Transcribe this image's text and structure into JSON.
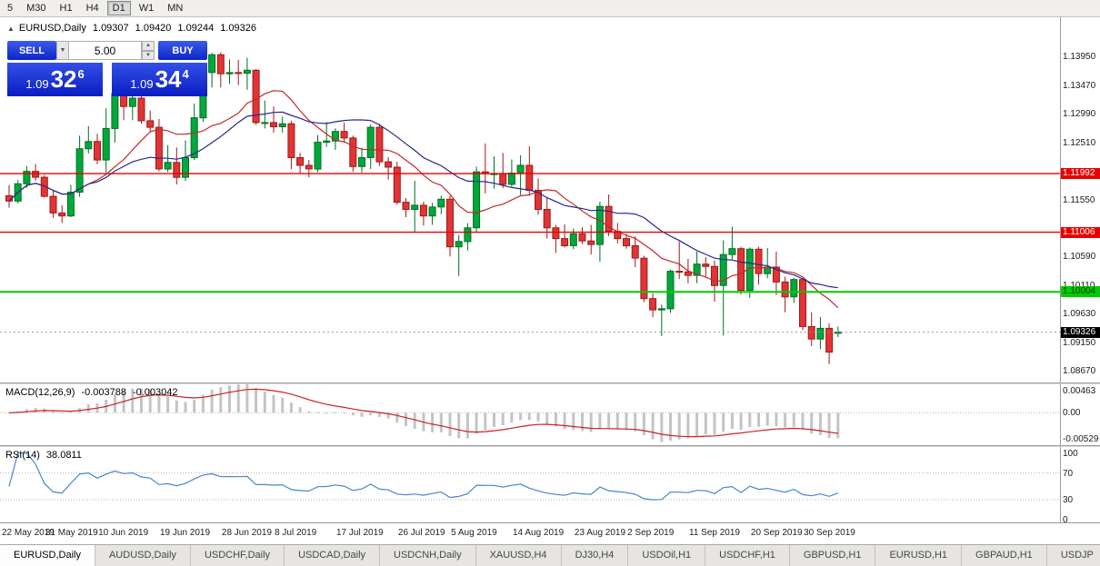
{
  "toolbar": {
    "timeframes": [
      {
        "label": "5",
        "active": false
      },
      {
        "label": "M30",
        "active": false
      },
      {
        "label": "H1",
        "active": false
      },
      {
        "label": "H4",
        "active": false
      },
      {
        "label": "D1",
        "active": true
      },
      {
        "label": "W1",
        "active": false
      },
      {
        "label": "MN",
        "active": false
      }
    ]
  },
  "chart_header": {
    "collapse_icon": "▲",
    "symbol": "EURUSD,Daily",
    "open": "1.09307",
    "high": "1.09420",
    "low": "1.09244",
    "close": "1.09326"
  },
  "one_click_trading": {
    "sell_label": "SELL",
    "buy_label": "BUY",
    "lot_value": "5.00",
    "sell_price": {
      "prefix": "1.09",
      "big": "32",
      "sup": "6"
    },
    "buy_price": {
      "prefix": "1.09",
      "big": "34",
      "sup": "4"
    },
    "icons": {
      "dropdown": "▼",
      "step_up": "▲",
      "step_down": "▼"
    }
  },
  "chart_data": {
    "type": "candlestick",
    "symbol": "EURUSD",
    "timeframe": "Daily",
    "price_range": {
      "top": 1.1462,
      "bottom": 1.0848
    },
    "price_axis_ticks": [
      "1.13950",
      "1.13470",
      "1.12990",
      "1.12510",
      "1.11550",
      "1.10590",
      "1.10110",
      "1.09630",
      "1.09150",
      "1.08670"
    ],
    "levels": [
      {
        "price": 1.11992,
        "label": "1.11992",
        "color": "#e80000",
        "text_color": "#ffffff",
        "width": 1.4,
        "type": "resistance-upper"
      },
      {
        "price": 1.11006,
        "label": "1.11006",
        "color": "#e80000",
        "text_color": "#ffffff",
        "width": 1.4,
        "type": "resistance-lower"
      },
      {
        "price": 1.10004,
        "label": "1.10004",
        "color": "#00cc00",
        "text_color": "#003300",
        "width": 2,
        "type": "support"
      }
    ],
    "current_price": {
      "value": 1.09326,
      "label": "1.09326",
      "bg": "#000000",
      "text_color": "#ffffff"
    },
    "colors": {
      "up": "#00a83a",
      "up_border": "#006e22",
      "down": "#e23434",
      "down_border": "#9c1a1a"
    },
    "moving_averages": [
      {
        "type": "SMA",
        "period": 10,
        "color": "#c22a2a"
      },
      {
        "type": "SMA",
        "period": 20,
        "color": "#28288e"
      }
    ],
    "candle_format": [
      "date",
      "open",
      "high",
      "low",
      "close"
    ],
    "candles": [
      [
        "22 May",
        1.1162,
        1.118,
        1.1142,
        1.1153
      ],
      [
        "23 May",
        1.1153,
        1.1188,
        1.1149,
        1.1182
      ],
      [
        "24 May",
        1.1182,
        1.1212,
        1.1175,
        1.1203
      ],
      [
        "27 May",
        1.1203,
        1.1215,
        1.1187,
        1.1193
      ],
      [
        "28 May",
        1.1193,
        1.1197,
        1.1159,
        1.1161
      ],
      [
        "29 May",
        1.1161,
        1.1172,
        1.1125,
        1.1133
      ],
      [
        "30 May",
        1.1133,
        1.1146,
        1.1116,
        1.1128
      ],
      [
        "31 May",
        1.1128,
        1.118,
        1.1126,
        1.1168
      ],
      [
        "3 Jun",
        1.1168,
        1.1263,
        1.116,
        1.1241
      ],
      [
        "4 Jun",
        1.1241,
        1.1279,
        1.1233,
        1.1253
      ],
      [
        "5 Jun",
        1.1253,
        1.1266,
        1.1215,
        1.1222
      ],
      [
        "6 Jun",
        1.1222,
        1.1309,
        1.1201,
        1.1275
      ],
      [
        "7 Jun",
        1.1275,
        1.1348,
        1.1251,
        1.1334
      ],
      [
        "10 Jun",
        1.1334,
        1.1336,
        1.1289,
        1.1312
      ],
      [
        "11 Jun",
        1.1312,
        1.1338,
        1.1289,
        1.1326
      ],
      [
        "12 Jun",
        1.1326,
        1.1344,
        1.1283,
        1.1288
      ],
      [
        "13 Jun",
        1.1288,
        1.1305,
        1.1268,
        1.1277
      ],
      [
        "14 Jun",
        1.1277,
        1.1291,
        1.1203,
        1.1207
      ],
      [
        "17 Jun",
        1.1207,
        1.1247,
        1.1202,
        1.1218
      ],
      [
        "18 Jun",
        1.1218,
        1.1243,
        1.1181,
        1.1193
      ],
      [
        "19 Jun",
        1.1193,
        1.1255,
        1.1187,
        1.1226
      ],
      [
        "20 Jun",
        1.1226,
        1.1317,
        1.1222,
        1.1293
      ],
      [
        "21 Jun",
        1.1293,
        1.1378,
        1.1286,
        1.1369
      ],
      [
        "24 Jun",
        1.1369,
        1.1402,
        1.1344,
        1.1399
      ],
      [
        "25 Jun",
        1.1399,
        1.1403,
        1.1344,
        1.1367
      ],
      [
        "26 Jun",
        1.1367,
        1.1391,
        1.135,
        1.1369
      ],
      [
        "27 Jun",
        1.1369,
        1.139,
        1.1348,
        1.1368
      ],
      [
        "28 Jun",
        1.1368,
        1.1394,
        1.134,
        1.1373
      ],
      [
        "1 Jul",
        1.1373,
        1.1375,
        1.1281,
        1.1285
      ],
      [
        "2 Jul",
        1.1285,
        1.1322,
        1.1275,
        1.1285
      ],
      [
        "3 Jul",
        1.1285,
        1.1312,
        1.1268,
        1.1278
      ],
      [
        "4 Jul",
        1.1278,
        1.1295,
        1.1268,
        1.1283
      ],
      [
        "5 Jul",
        1.1283,
        1.1288,
        1.1207,
        1.1226
      ],
      [
        "8 Jul",
        1.1226,
        1.1234,
        1.1199,
        1.1213
      ],
      [
        "9 Jul",
        1.1213,
        1.1222,
        1.1193,
        1.1207
      ],
      [
        "10 Jul",
        1.1207,
        1.1264,
        1.1202,
        1.1252
      ],
      [
        "11 Jul",
        1.1252,
        1.1286,
        1.1244,
        1.1254
      ],
      [
        "12 Jul",
        1.1254,
        1.1275,
        1.1239,
        1.127
      ],
      [
        "15 Jul",
        1.127,
        1.1285,
        1.1251,
        1.1259
      ],
      [
        "16 Jul",
        1.1259,
        1.1263,
        1.1202,
        1.1211
      ],
      [
        "17 Jul",
        1.1211,
        1.1243,
        1.1201,
        1.1226
      ],
      [
        "18 Jul",
        1.1226,
        1.1282,
        1.1207,
        1.1277
      ],
      [
        "19 Jul",
        1.1277,
        1.1283,
        1.1212,
        1.1219
      ],
      [
        "22 Jul",
        1.1219,
        1.1227,
        1.1189,
        1.121
      ],
      [
        "23 Jul",
        1.121,
        1.1219,
        1.1147,
        1.1151
      ],
      [
        "24 Jul",
        1.1151,
        1.1158,
        1.1126,
        1.1139
      ],
      [
        "25 Jul",
        1.1139,
        1.1187,
        1.1101,
        1.1146
      ],
      [
        "26 Jul",
        1.1146,
        1.1152,
        1.1112,
        1.1128
      ],
      [
        "29 Jul",
        1.1128,
        1.115,
        1.1113,
        1.1143
      ],
      [
        "30 Jul",
        1.1143,
        1.1162,
        1.1131,
        1.1156
      ],
      [
        "31 Jul",
        1.1156,
        1.1162,
        1.106,
        1.1076
      ],
      [
        "1 Aug",
        1.1076,
        1.1096,
        1.1027,
        1.1085
      ],
      [
        "2 Aug",
        1.1085,
        1.1116,
        1.107,
        1.1108
      ],
      [
        "5 Aug",
        1.1108,
        1.1211,
        1.1101,
        1.1202
      ],
      [
        "6 Aug",
        1.1202,
        1.125,
        1.1166,
        1.1199
      ],
      [
        "7 Aug",
        1.1199,
        1.1228,
        1.1174,
        1.1199
      ],
      [
        "8 Aug",
        1.1199,
        1.1234,
        1.1175,
        1.1181
      ],
      [
        "9 Aug",
        1.1181,
        1.1223,
        1.1177,
        1.12
      ],
      [
        "12 Aug",
        1.12,
        1.123,
        1.1163,
        1.1213
      ],
      [
        "13 Aug",
        1.1213,
        1.1245,
        1.1162,
        1.1171
      ],
      [
        "14 Aug",
        1.1171,
        1.1191,
        1.113,
        1.1139
      ],
      [
        "15 Aug",
        1.1139,
        1.1159,
        1.109,
        1.1108
      ],
      [
        "16 Aug",
        1.1108,
        1.1113,
        1.1066,
        1.109
      ],
      [
        "19 Aug",
        1.109,
        1.1114,
        1.1075,
        1.1078
      ],
      [
        "20 Aug",
        1.1078,
        1.1107,
        1.1072,
        1.1098
      ],
      [
        "21 Aug",
        1.1098,
        1.1109,
        1.1081,
        1.1086
      ],
      [
        "22 Aug",
        1.1086,
        1.1113,
        1.1063,
        1.108
      ],
      [
        "23 Aug",
        1.108,
        1.1152,
        1.1051,
        1.1144
      ],
      [
        "26 Aug",
        1.1144,
        1.1164,
        1.1094,
        1.1102
      ],
      [
        "27 Aug",
        1.1102,
        1.1116,
        1.1082,
        1.109
      ],
      [
        "28 Aug",
        1.109,
        1.1098,
        1.1073,
        1.1078
      ],
      [
        "29 Aug",
        1.1078,
        1.1094,
        1.1042,
        1.1057
      ],
      [
        "30 Aug",
        1.1057,
        1.1061,
        1.0983,
        1.0989
      ],
      [
        "2 Sep",
        1.0989,
        1.0998,
        1.0958,
        1.097
      ],
      [
        "3 Sep",
        1.097,
        1.0979,
        1.0926,
        1.0972
      ],
      [
        "4 Sep",
        1.0972,
        1.1038,
        1.0965,
        1.1035
      ],
      [
        "5 Sep",
        1.1035,
        1.1085,
        1.1022,
        1.1034
      ],
      [
        "6 Sep",
        1.1034,
        1.1056,
        1.1015,
        1.1028
      ],
      [
        "9 Sep",
        1.1028,
        1.1068,
        1.1015,
        1.1047
      ],
      [
        "10 Sep",
        1.1047,
        1.1059,
        1.1026,
        1.1043
      ],
      [
        "11 Sep",
        1.1043,
        1.1053,
        1.0984,
        1.1011
      ],
      [
        "12 Sep",
        1.1011,
        1.1087,
        1.0927,
        1.1063
      ],
      [
        "13 Sep",
        1.1063,
        1.111,
        1.1055,
        1.1073
      ],
      [
        "16 Sep",
        1.1073,
        1.1076,
        1.0996,
        1.1003
      ],
      [
        "17 Sep",
        1.1003,
        1.1075,
        1.099,
        1.1072
      ],
      [
        "18 Sep",
        1.1072,
        1.1076,
        1.1013,
        1.1031
      ],
      [
        "19 Sep",
        1.1031,
        1.1074,
        1.1023,
        1.1042
      ],
      [
        "20 Sep",
        1.1042,
        1.1068,
        1.0995,
        1.1017
      ],
      [
        "23 Sep",
        1.1017,
        1.1026,
        1.0966,
        1.0992
      ],
      [
        "24 Sep",
        1.0992,
        1.1024,
        1.0982,
        1.1021
      ],
      [
        "25 Sep",
        1.1021,
        1.1024,
        1.0936,
        1.0942
      ],
      [
        "26 Sep",
        1.0942,
        1.0966,
        1.0909,
        1.0921
      ],
      [
        "27 Sep",
        1.0921,
        1.0958,
        1.0904,
        1.0939
      ],
      [
        "30 Sep",
        1.0939,
        1.0947,
        1.0879,
        1.0899
      ],
      [
        "1 Oct",
        1.09307,
        1.0942,
        1.09244,
        1.09326
      ]
    ],
    "x_labels": [
      {
        "label": "22 May 2019",
        "index": 0
      },
      {
        "label": "31 May 2019",
        "index": 7
      },
      {
        "label": "10 Jun 2019",
        "index": 13
      },
      {
        "label": "19 Jun 2019",
        "index": 20
      },
      {
        "label": "28 Jun 2019",
        "index": 27
      },
      {
        "label": "8 Jul 2019",
        "index": 33
      },
      {
        "label": "17 Jul 2019",
        "index": 40
      },
      {
        "label": "26 Jul 2019",
        "index": 47
      },
      {
        "label": "5 Aug 2019",
        "index": 53
      },
      {
        "label": "14 Aug 2019",
        "index": 60
      },
      {
        "label": "23 Aug 2019",
        "index": 67
      },
      {
        "label": "2 Sep 2019",
        "index": 73
      },
      {
        "label": "11 Sep 2019",
        "index": 80
      },
      {
        "label": "20 Sep 2019",
        "index": 87
      },
      {
        "label": "30 Sep 2019",
        "index": 93
      }
    ],
    "macd": {
      "label": "MACD(12,26,9)",
      "fast": 12,
      "slow": 26,
      "signal": 9,
      "value_main": "-0.003788",
      "value_signal": "-0.003042",
      "axis_top": "0.00463",
      "axis_zero": "0.00",
      "axis_bottom": "-0.00529",
      "scale_top": 0.00463,
      "scale_bottom": -0.00529,
      "hist_color": "#c4c4c4",
      "signal_color": "#cc2222"
    },
    "rsi": {
      "label": "RSI(14)",
      "period": 14,
      "value": "38.0811",
      "axis": [
        "100",
        "70",
        "30",
        "0"
      ],
      "levels": [
        70,
        30
      ],
      "line_color": "#4a86c8"
    }
  },
  "bottom_tabs": {
    "active_index": 0,
    "tabs": [
      "EURUSD,Daily",
      "AUDUSD,Daily",
      "USDCHF,Daily",
      "USDCAD,Daily",
      "USDCNH,Daily",
      "XAUUSD,H4",
      "DJ30,H4",
      "USDOil,H1",
      "USDCHF,H1",
      "GBPUSD,H1",
      "EURUSD,H1",
      "GBPAUD,H1",
      "USDJP"
    ]
  }
}
